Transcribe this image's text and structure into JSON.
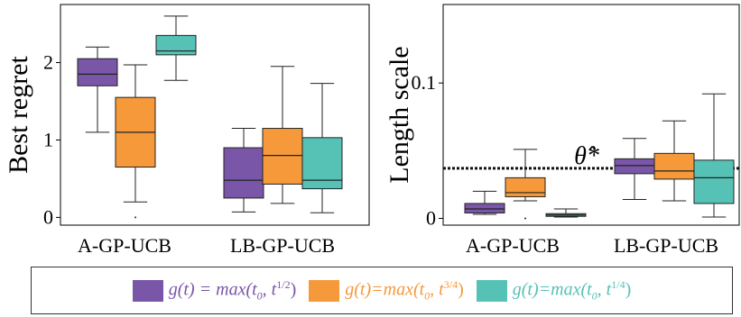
{
  "chart_data": [
    {
      "type": "box",
      "ylabel": "Best regret",
      "yticks": [
        0,
        1,
        2
      ],
      "ylim": [
        -0.1,
        2.75
      ],
      "categories": [
        "A-GP-UCB",
        "LB-GP-UCB"
      ],
      "boxes": [
        {
          "category": "A-GP-UCB",
          "series": 0,
          "min": 1.1,
          "q1": 1.7,
          "median": 1.85,
          "q3": 2.05,
          "max": 2.2,
          "outliers": []
        },
        {
          "category": "A-GP-UCB",
          "series": 1,
          "min": 0.2,
          "q1": 0.65,
          "median": 1.1,
          "q3": 1.55,
          "max": 1.97,
          "outliers": [
            0.0
          ]
        },
        {
          "category": "A-GP-UCB",
          "series": 2,
          "min": 1.77,
          "q1": 2.1,
          "median": 2.15,
          "q3": 2.35,
          "max": 2.6,
          "outliers": []
        },
        {
          "category": "LB-GP-UCB",
          "series": 0,
          "min": 0.07,
          "q1": 0.25,
          "median": 0.48,
          "q3": 0.9,
          "max": 1.15,
          "outliers": []
        },
        {
          "category": "LB-GP-UCB",
          "series": 1,
          "min": 0.18,
          "q1": 0.43,
          "median": 0.8,
          "q3": 1.15,
          "max": 1.95,
          "outliers": []
        },
        {
          "category": "LB-GP-UCB",
          "series": 2,
          "min": 0.06,
          "q1": 0.37,
          "median": 0.48,
          "q3": 1.03,
          "max": 1.73,
          "outliers": []
        }
      ]
    },
    {
      "type": "box",
      "ylabel": "Length scale",
      "yticks": [
        0,
        0.1
      ],
      "ylim": [
        -0.005,
        0.158
      ],
      "categories": [
        "A-GP-UCB",
        "LB-GP-UCB"
      ],
      "reference_line": {
        "value": 0.037,
        "label": "θ̂*"
      },
      "boxes": [
        {
          "category": "A-GP-UCB",
          "series": 0,
          "min": 0.003,
          "q1": 0.004,
          "median": 0.007,
          "q3": 0.011,
          "max": 0.02,
          "outliers": []
        },
        {
          "category": "A-GP-UCB",
          "series": 1,
          "min": 0.013,
          "q1": 0.016,
          "median": 0.019,
          "q3": 0.03,
          "max": 0.051,
          "outliers": [
            0.0
          ]
        },
        {
          "category": "A-GP-UCB",
          "series": 2,
          "min": 0.001,
          "q1": 0.0015,
          "median": 0.0025,
          "q3": 0.0035,
          "max": 0.007,
          "outliers": []
        },
        {
          "category": "LB-GP-UCB",
          "series": 0,
          "min": 0.014,
          "q1": 0.033,
          "median": 0.039,
          "q3": 0.044,
          "max": 0.059,
          "outliers": []
        },
        {
          "category": "LB-GP-UCB",
          "series": 1,
          "min": 0.013,
          "q1": 0.029,
          "median": 0.035,
          "q3": 0.048,
          "max": 0.072,
          "outliers": []
        },
        {
          "category": "LB-GP-UCB",
          "series": 2,
          "min": 0.001,
          "q1": 0.011,
          "median": 0.03,
          "q3": 0.043,
          "max": 0.092,
          "outliers": []
        }
      ]
    }
  ],
  "series": [
    {
      "name": "g(t) = max(t0 , t1/2)",
      "color": "#7a56a8"
    },
    {
      "name": "g(t)=max(t0 , t3/4)",
      "color": "#f5993a"
    },
    {
      "name": "g(t)=max(t0 , t1/4)",
      "color": "#56c2b6"
    }
  ],
  "legend": {
    "items": [
      {
        "color": "#7a56a8",
        "lhs": "g(t) = max(t",
        "sub": "0",
        "mid": ", t",
        "sup": "1/2",
        "end": ")"
      },
      {
        "color": "#f5993a",
        "lhs": "g(t)=max(t",
        "sub": "0",
        "mid": ", t",
        "sup": "3/4",
        "end": ")"
      },
      {
        "color": "#56c2b6",
        "lhs": "g(t)=max(t",
        "sub": "0",
        "mid": ", t",
        "sup": "1/4",
        "end": ")"
      }
    ]
  }
}
